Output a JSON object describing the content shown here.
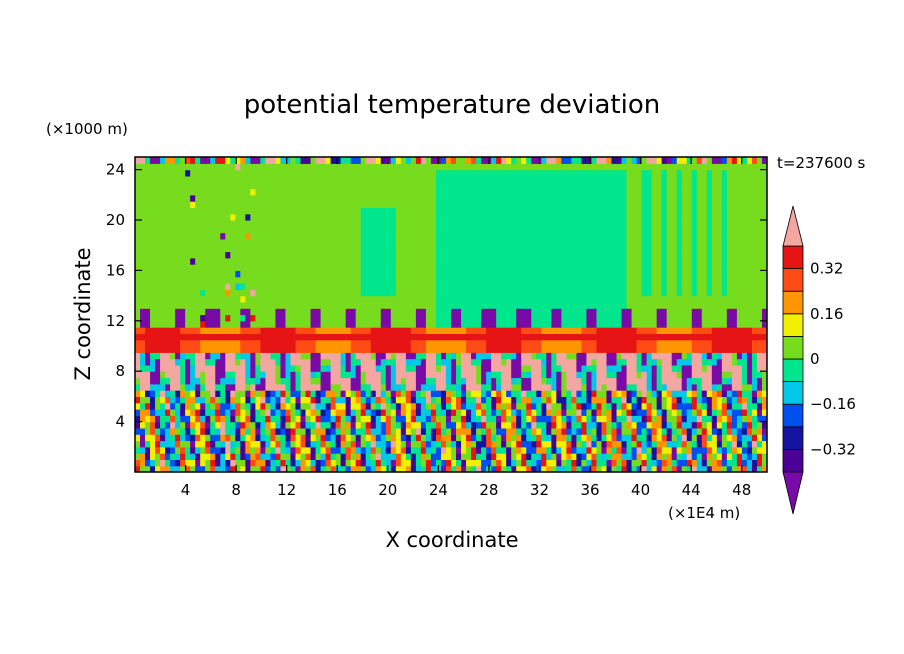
{
  "chart_data": {
    "type": "heatmap",
    "title": "potential temperature deviation",
    "xlabel": "X coordinate",
    "ylabel": "Z coordinate",
    "x_unit": "(×1E4 m)",
    "y_unit": "(×1000 m)",
    "time_label": "t=237600 s",
    "xlim": [
      0,
      50
    ],
    "ylim": [
      0,
      25
    ],
    "x_ticks": [
      4,
      8,
      12,
      16,
      20,
      24,
      28,
      32,
      36,
      40,
      44,
      48
    ],
    "y_ticks": [
      4,
      8,
      12,
      16,
      20,
      24
    ],
    "legend_position": "right",
    "colorbar": {
      "levels": [
        -0.4,
        -0.32,
        -0.24,
        -0.16,
        -0.08,
        0,
        0.08,
        0.16,
        0.24,
        0.32,
        0.4
      ],
      "labeled_values": [
        0.32,
        0.16,
        0,
        -0.16,
        -0.32
      ],
      "labels": [
        "0.32",
        "0.16",
        "0",
        "−0.16",
        "−0.32"
      ],
      "below_color": "#7a0aa8",
      "above_color": "#f4a6a0",
      "colors": [
        "#4b0096",
        "#1414a0",
        "#0050f0",
        "#00c8e6",
        "#00e68c",
        "#78dc1e",
        "#f0f000",
        "#ff9600",
        "#ff4b14",
        "#e61414"
      ]
    },
    "layers": [
      {
        "z": [
          0,
          6.5
        ],
        "description": "small-scale mixed anomalies, range -0.4 to 0.4"
      },
      {
        "z": [
          6.5,
          9.5
        ],
        "values": "mostly -0.4 (purple) and 0.4+ (pink) plumes"
      },
      {
        "z": [
          9.5,
          11.5
        ],
        "values": "0.24 to 0.4 (orange-red band)"
      },
      {
        "z": [
          11.5,
          24.5
        ],
        "values": "0 to 0.08 (light green) with patches -0.08 to 0 (teal)"
      },
      {
        "z": [
          24.5,
          25
        ],
        "values": "thin mixed layer near top"
      }
    ]
  }
}
